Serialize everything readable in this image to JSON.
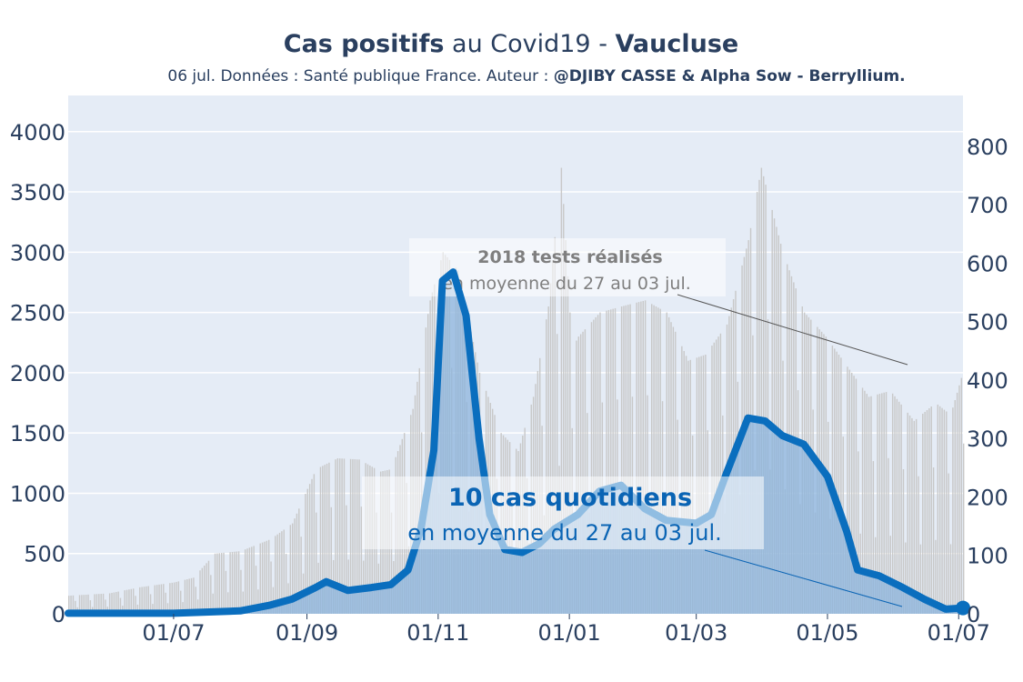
{
  "header": {
    "title_part1": "Cas positifs",
    "title_part2": " au Covid19 - ",
    "title_part3": "Vaucluse",
    "subtitle_prefix": "06 jul. Données : Santé publique France. Auteur : ",
    "subtitle_author": "@DJIBY CASSE & Alpha Sow - Berryllium."
  },
  "annotations": {
    "tests_bold": "2018 tests réalisés",
    "tests_sub": "en moyenne du 27 au 03 jul.",
    "cases_bold": "10 cas quotidiens",
    "cases_sub": "en moyenne du 27 au 03 jul."
  },
  "colors": {
    "plot_bg": "#e5ecf6",
    "tests_bar": "#c8c8c8",
    "cases_area": "#8cb4dc",
    "cases_line": "#0a6ebe",
    "text": "#2a3f5f",
    "tests_text": "#7f7f7f"
  },
  "chart_data": {
    "type": "bar",
    "x_start": "2020-05-13",
    "x_end": "2021-07-03",
    "x_ticks": [
      "01/07",
      "01/09",
      "01/11",
      "01/01",
      "01/03",
      "01/05",
      "01/07"
    ],
    "y_left_ticks": [
      "0",
      "500",
      "1000",
      "1500",
      "2000",
      "2500",
      "3000",
      "3500",
      "4000"
    ],
    "y_left_range": [
      0,
      4300
    ],
    "y_right_ticks": [
      "0",
      "100",
      "200",
      "300",
      "400",
      "500",
      "600",
      "700",
      "800"
    ],
    "y_right_range": [
      0,
      887
    ],
    "grid": true,
    "series": [
      {
        "axis": "left",
        "style": "bars",
        "points": [
          [
            "2020-05-13",
            150
          ],
          [
            "2020-06-01",
            170
          ],
          [
            "2020-06-15",
            220
          ],
          [
            "2020-07-01",
            260
          ],
          [
            "2020-07-10",
            300
          ],
          [
            "2020-07-20",
            500
          ],
          [
            "2020-08-01",
            520
          ],
          [
            "2020-08-15",
            620
          ],
          [
            "2020-08-25",
            750
          ],
          [
            "2020-09-05",
            1200
          ],
          [
            "2020-09-15",
            1290
          ],
          [
            "2020-09-25",
            1280
          ],
          [
            "2020-10-05",
            1180
          ],
          [
            "2020-10-10",
            1200
          ],
          [
            "2020-10-20",
            1700
          ],
          [
            "2020-10-28",
            2600
          ],
          [
            "2020-11-03",
            3000
          ],
          [
            "2020-11-10",
            2850
          ],
          [
            "2020-11-20",
            2000
          ],
          [
            "2020-11-30",
            1500
          ],
          [
            "2020-12-08",
            1350
          ],
          [
            "2020-12-15",
            1800
          ],
          [
            "2020-12-22",
            2550
          ],
          [
            "2020-12-28",
            3700
          ],
          [
            "2021-01-02",
            2200
          ],
          [
            "2021-01-05",
            2300
          ],
          [
            "2021-01-15",
            2500
          ],
          [
            "2021-01-25",
            2550
          ],
          [
            "2021-02-05",
            2600
          ],
          [
            "2021-02-15",
            2500
          ],
          [
            "2021-02-25",
            2100
          ],
          [
            "2021-03-05",
            2150
          ],
          [
            "2021-03-15",
            2400
          ],
          [
            "2021-03-25",
            3100
          ],
          [
            "2021-03-31",
            3700
          ],
          [
            "2021-04-10",
            3000
          ],
          [
            "2021-04-20",
            2500
          ],
          [
            "2021-04-30",
            2300
          ],
          [
            "2021-05-10",
            2050
          ],
          [
            "2021-05-20",
            1800
          ],
          [
            "2021-05-30",
            1850
          ],
          [
            "2021-06-10",
            1600
          ],
          [
            "2021-06-20",
            1750
          ],
          [
            "2021-06-27",
            1650
          ],
          [
            "2021-07-03",
            2018
          ]
        ]
      },
      {
        "axis": "right",
        "style": "line",
        "points": [
          [
            "2020-05-13",
            1
          ],
          [
            "2020-06-10",
            1
          ],
          [
            "2020-07-01",
            1
          ],
          [
            "2020-08-01",
            5
          ],
          [
            "2020-08-15",
            15
          ],
          [
            "2020-08-25",
            25
          ],
          [
            "2020-09-05",
            45
          ],
          [
            "2020-09-10",
            55
          ],
          [
            "2020-09-20",
            40
          ],
          [
            "2020-10-01",
            45
          ],
          [
            "2020-10-10",
            50
          ],
          [
            "2020-10-18",
            75
          ],
          [
            "2020-10-24",
            145
          ],
          [
            "2020-10-30",
            280
          ],
          [
            "2020-11-03",
            570
          ],
          [
            "2020-11-08",
            585
          ],
          [
            "2020-11-14",
            510
          ],
          [
            "2020-11-20",
            300
          ],
          [
            "2020-11-25",
            170
          ],
          [
            "2020-12-02",
            110
          ],
          [
            "2020-12-10",
            105
          ],
          [
            "2020-12-18",
            120
          ],
          [
            "2020-12-25",
            145
          ],
          [
            "2021-01-05",
            170
          ],
          [
            "2021-01-15",
            210
          ],
          [
            "2021-01-25",
            220
          ],
          [
            "2021-02-05",
            180
          ],
          [
            "2021-02-15",
            160
          ],
          [
            "2021-03-01",
            155
          ],
          [
            "2021-03-08",
            170
          ],
          [
            "2021-03-15",
            240
          ],
          [
            "2021-03-25",
            335
          ],
          [
            "2021-04-02",
            330
          ],
          [
            "2021-04-10",
            305
          ],
          [
            "2021-04-20",
            290
          ],
          [
            "2021-05-01",
            235
          ],
          [
            "2021-05-10",
            140
          ],
          [
            "2021-05-15",
            75
          ],
          [
            "2021-05-25",
            65
          ],
          [
            "2021-06-05",
            45
          ],
          [
            "2021-06-15",
            25
          ],
          [
            "2021-06-25",
            8
          ],
          [
            "2021-07-03",
            10
          ]
        ]
      }
    ]
  }
}
